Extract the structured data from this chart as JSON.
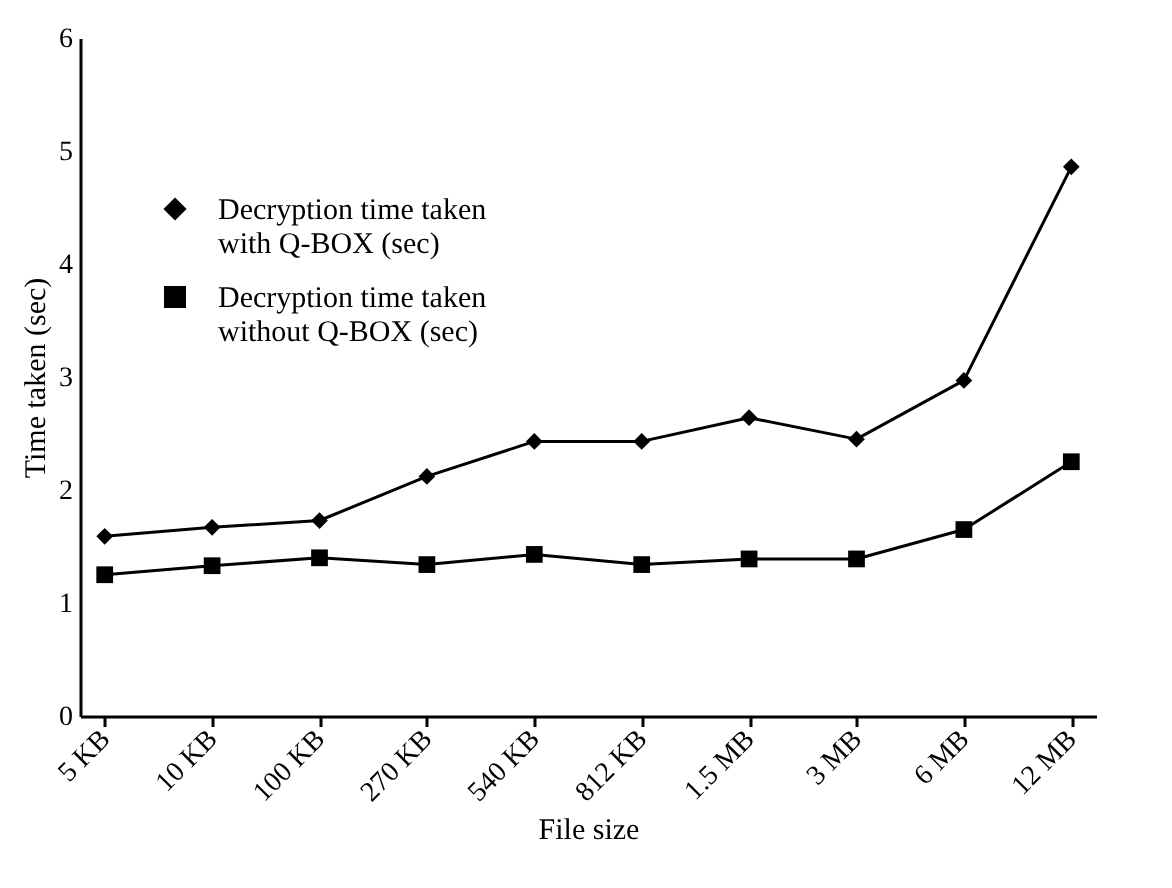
{
  "chart_data": {
    "type": "line",
    "xlabel": "File size",
    "ylabel": "Time taken (sec)",
    "categories": [
      "5 KB",
      "10 KB",
      "100 KB",
      "270 KB",
      "540 KB",
      "812 KB",
      "1.5 MB",
      "3 MB",
      "6 MB",
      "12 MB"
    ],
    "series": [
      {
        "name": "Decryption time taken with Q-BOX (sec)",
        "color": "#000000",
        "marker": "diamond",
        "values": [
          1.59,
          1.67,
          1.73,
          2.12,
          2.43,
          2.43,
          2.64,
          2.45,
          2.97,
          4.86
        ]
      },
      {
        "name": "Decryption time taken without Q-BOX (sec)",
        "color": "#000000",
        "marker": "square",
        "values": [
          1.25,
          1.33,
          1.4,
          1.34,
          1.43,
          1.34,
          1.39,
          1.39,
          1.65,
          2.25
        ]
      }
    ],
    "ylim": [
      0,
      6
    ],
    "yticks": [
      0,
      1,
      2,
      3,
      4,
      5,
      6
    ],
    "grid": false,
    "legend": "top left",
    "line_style": "solid"
  }
}
